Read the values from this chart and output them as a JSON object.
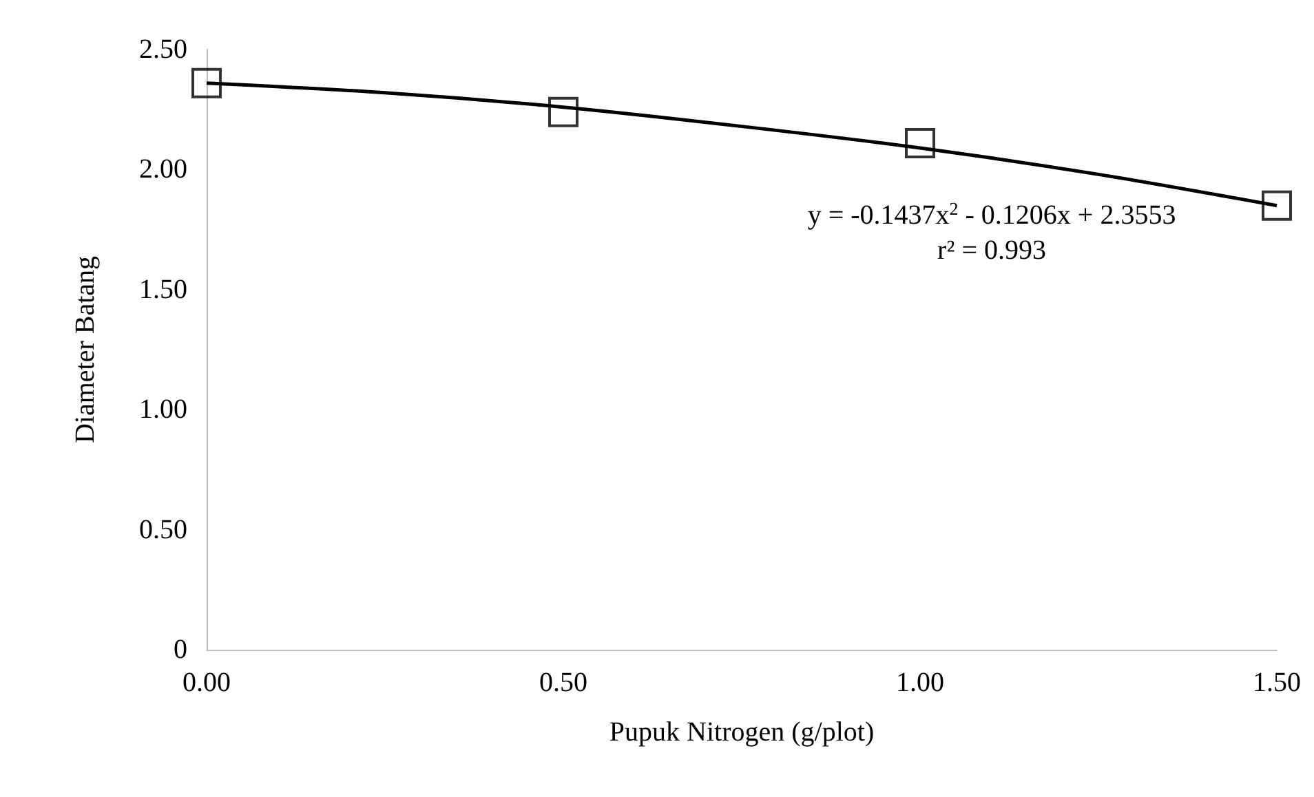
{
  "chart_data": {
    "type": "scatter",
    "xlabel": "Pupuk Nitrogen (g/plot)",
    "ylabel": "Diameter Batang",
    "xlim": [
      0,
      1.5
    ],
    "xticks": [
      {
        "value": 0,
        "label": "0.00"
      },
      {
        "value": 0.5,
        "label": "0.50"
      },
      {
        "value": 1,
        "label": "1.00"
      },
      {
        "value": 1.5,
        "label": "1.50"
      }
    ],
    "ylim": [
      0,
      2.5
    ],
    "yticks": [
      0,
      {
        "value": 0.5,
        "label": "0.50"
      },
      {
        "value": 1,
        "label": "1.00"
      },
      {
        "value": 1.5,
        "label": "1.50"
      },
      {
        "value": 2,
        "label": "2.00"
      },
      {
        "value": 2.5,
        "label": "2.50"
      }
    ],
    "grid": false,
    "marker": "square",
    "series": [
      {
        "type": "scatter",
        "color": "#000000",
        "x": [
          0,
          0.5,
          1,
          1.5
        ],
        "values": [
          2.36,
          2.24,
          2.11,
          1.85
        ]
      },
      {
        "type": "line",
        "color": "#000000",
        "line_style": "solid",
        "marker": "none",
        "x": [
          0,
          0.25,
          0.5,
          0.75,
          1,
          1.25,
          1.5
        ],
        "values": [
          2.36,
          2.32,
          2.26,
          2.18,
          2.09,
          1.98,
          1.85
        ]
      }
    ],
    "annotations": [
      "y = -0.1437x$^{2}$ - 0.1206x + 2.3553",
      "r² = 0.993"
    ]
  }
}
